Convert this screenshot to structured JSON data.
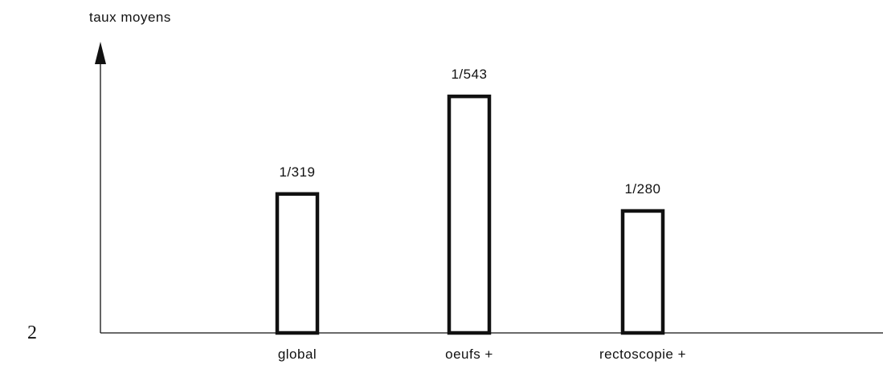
{
  "page_number": "2",
  "chart_data": {
    "type": "bar",
    "ylabel": "taux moyens",
    "xlabel": "",
    "categories": [
      "global",
      "oeufs +",
      "rectoscopie +"
    ],
    "values": [
      319,
      543,
      280
    ],
    "data_labels": [
      "1/319",
      "1/543",
      "1/280"
    ],
    "ylim": [
      0,
      640
    ],
    "grid": false,
    "legend": "none",
    "bar_style": "outline",
    "colors": {
      "bar_stroke": "#111111",
      "bar_fill": "#ffffff",
      "axis": "#111111"
    }
  }
}
